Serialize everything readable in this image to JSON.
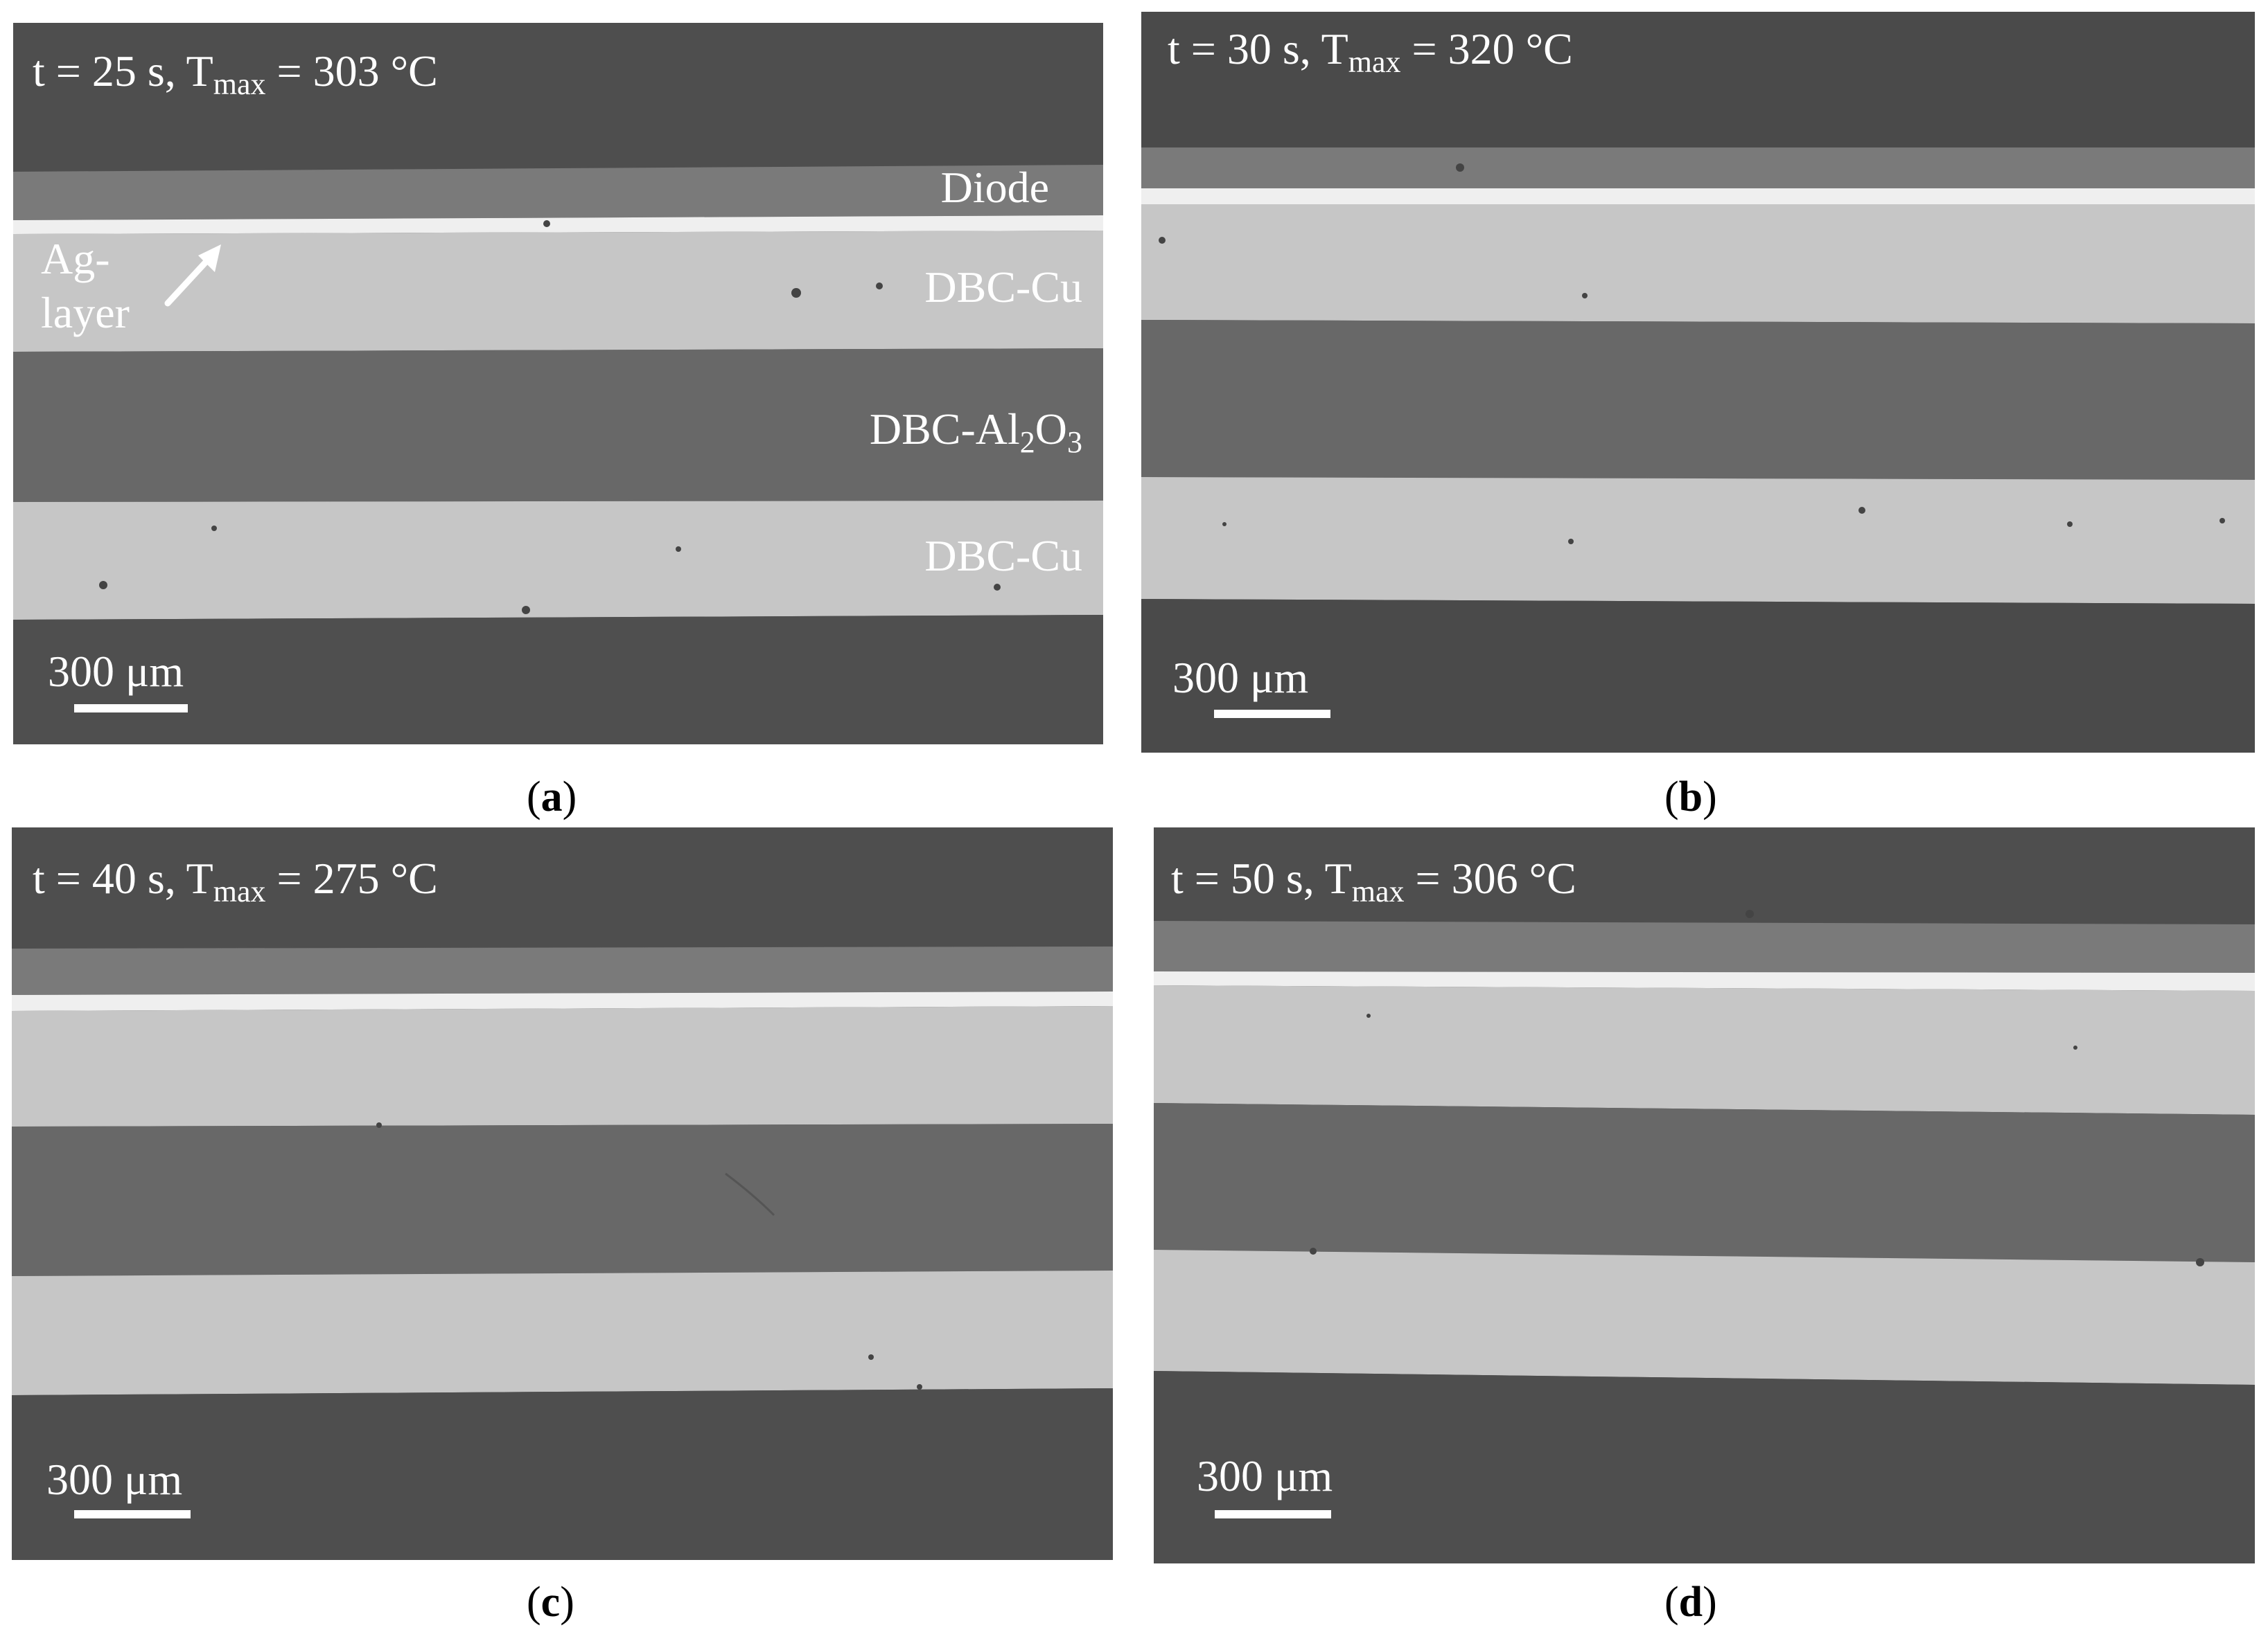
{
  "panels": {
    "a": {
      "title": {
        "t_label": "t = 25 s, T",
        "sub": "max",
        "temp": " = 303 °C"
      },
      "scale_bar": "300 μm",
      "caption_letter": "a",
      "labels": {
        "diode": "Diode",
        "ag_layer": "Ag-layer",
        "dbc_cu_top": "DBC-Cu",
        "dbc_al2o3_prefix": "DBC-Al",
        "dbc_al2o3_sub1": "2",
        "dbc_al2o3_mid": "O",
        "dbc_al2o3_sub2": "3",
        "dbc_cu_bottom": "DBC-Cu"
      }
    },
    "b": {
      "title": {
        "t_label": "t = 30 s, T",
        "sub": "max",
        "temp": " = 320 °C"
      },
      "scale_bar": "300 μm",
      "caption_letter": "b"
    },
    "c": {
      "title": {
        "t_label": "t = 40 s, T",
        "sub": "max",
        "temp": " = 275 °C"
      },
      "scale_bar": "300 μm",
      "caption_letter": "c"
    },
    "d": {
      "title": {
        "t_label": "t = 50 s, T",
        "sub": "max",
        "temp": " = 306 °C"
      },
      "scale_bar": "300 μm",
      "caption_letter": "d"
    }
  },
  "caption_format": {
    "open": "(",
    "close": ")"
  },
  "colors": {
    "background": "#4e4e4e",
    "diode": "#7a7a7a",
    "ag_layer": "#efefef",
    "dbc_cu": "#c6c6c6",
    "dbc_al2o3": "#686868",
    "mount": "#4f4f4f",
    "label_text": "#ffffff"
  }
}
